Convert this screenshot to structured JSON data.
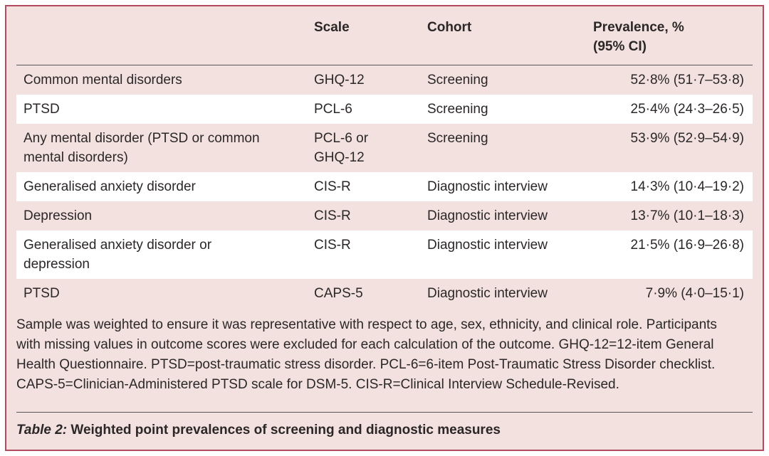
{
  "colors": {
    "card_background": "#f2e1de",
    "stripe": "#ffffff",
    "border": "#b24a60",
    "rule": "#57575a",
    "text": "#2b2728"
  },
  "header": {
    "outcome": "",
    "scale": "Scale",
    "cohort": "Cohort",
    "prevalence_line1": "Prevalence, %",
    "prevalence_line2": "(95% CI)"
  },
  "rows": [
    {
      "outcome": "Common mental disorders",
      "scale": "GHQ-12",
      "cohort": "Screening",
      "prevalence": "52·8% (51·7–53·8)"
    },
    {
      "outcome": "PTSD",
      "scale": "PCL-6",
      "cohort": "Screening",
      "prevalence": "25·4% (24·3–26·5)"
    },
    {
      "outcome": "Any mental disorder (PTSD or common mental disorders)",
      "scale": "PCL-6 or GHQ-12",
      "cohort": "Screening",
      "prevalence": "53·9% (52·9–54·9)"
    },
    {
      "outcome": "Generalised anxiety disorder",
      "scale": "CIS-R",
      "cohort": "Diagnostic interview",
      "prevalence": "14·3% (10·4–19·2)"
    },
    {
      "outcome": "Depression",
      "scale": "CIS-R",
      "cohort": "Diagnostic interview",
      "prevalence": "13·7% (10·1–18·3)"
    },
    {
      "outcome": "Generalised anxiety disorder or depression",
      "scale": "CIS-R",
      "cohort": "Diagnostic interview",
      "prevalence": "21·5% (16·9–26·8)"
    },
    {
      "outcome": "PTSD",
      "scale": "CAPS-5",
      "cohort": "Diagnostic interview",
      "prevalence": "7·9% (4·0–15·1)"
    }
  ],
  "footnote": "Sample was weighted to ensure it was representative with respect to age, sex, ethnicity, and clinical role. Participants with missing values in outcome scores were excluded for each calculation of the outcome. GHQ-12=12-item General Health Questionnaire. PTSD=post-traumatic stress disorder. PCL-6=6-item Post-Traumatic Stress Disorder checklist. CAPS-5=Clinician-Administered PTSD scale for DSM-5. CIS-R=Clinical Interview Schedule-Revised.",
  "caption": {
    "label": "Table 2:",
    "title": "Weighted point prevalences of screening and diagnostic measures"
  }
}
